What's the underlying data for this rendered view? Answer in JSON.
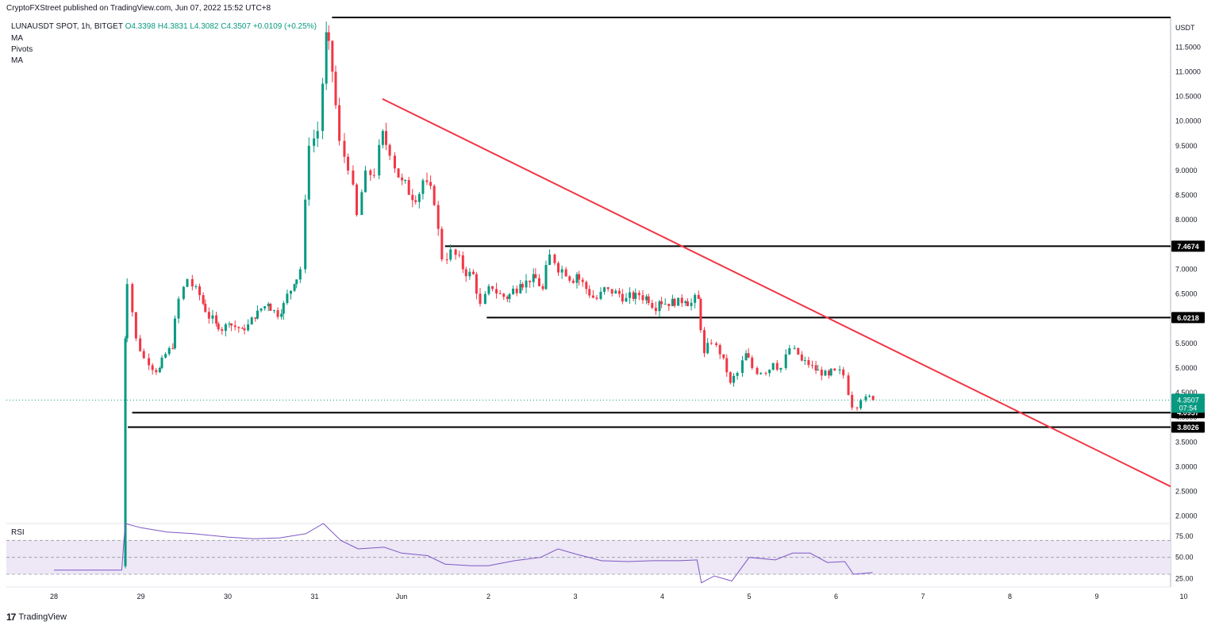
{
  "header": {
    "publisher": "CryptoFXStreet published on TradingView.com, Jun 07, 2022 15:52 UTC+8",
    "symbol": "LUNAUSDT SPOT, 1h, BITGET",
    "open": "O4.3398",
    "high": "H4.3831",
    "low": "L4.3082",
    "close": "C4.3507",
    "change": "+0.0109 (+0.25%)",
    "indicators": [
      "MA",
      "Pivots",
      "MA"
    ]
  },
  "branding": {
    "logo_text": "TradingView",
    "logo_mark": "17"
  },
  "colors": {
    "up": "#089981",
    "down": "#f23645",
    "trendline": "#f23645",
    "rsi": "#7e57c2",
    "rsi_band": "#ede7f6",
    "level": "#000000"
  },
  "chart_data": {
    "type": "candlestick",
    "symbol": "LUNAUSDT SPOT",
    "interval": "1h",
    "exchange": "BITGET",
    "y_unit": "USDT",
    "y_ticks": [
      "11.5000",
      "11.0000",
      "10.5000",
      "10.0000",
      "9.5000",
      "9.0000",
      "8.5000",
      "8.0000",
      "7.5000",
      "7.0000",
      "6.5000",
      "6.0000",
      "5.5000",
      "5.0000",
      "4.5000",
      "4.0000",
      "3.5000",
      "3.0000",
      "2.5000",
      "2.0000"
    ],
    "ylim": [
      1.85,
      12.1
    ],
    "x_ticks": [
      {
        "label": "28",
        "t": 28.0
      },
      {
        "label": "29",
        "t": 29.0
      },
      {
        "label": "30",
        "t": 30.0
      },
      {
        "label": "31",
        "t": 31.0
      },
      {
        "label": "Jun",
        "t": 32.0
      },
      {
        "label": "2",
        "t": 33.0
      },
      {
        "label": "3",
        "t": 34.0
      },
      {
        "label": "4",
        "t": 35.0
      },
      {
        "label": "5",
        "t": 36.0
      },
      {
        "label": "6",
        "t": 37.0
      },
      {
        "label": "7",
        "t": 38.0
      },
      {
        "label": "8",
        "t": 39.0
      },
      {
        "label": "9",
        "t": 40.0
      },
      {
        "label": "10",
        "t": 41.0
      }
    ],
    "price_path": [
      [
        28.78,
        1.0,
        1.0
      ],
      [
        28.8,
        1.0,
        5.6
      ],
      [
        28.86,
        5.6,
        6.7
      ],
      [
        28.95,
        6.6,
        5.6
      ],
      [
        29.05,
        5.5,
        5.2
      ],
      [
        29.2,
        5.1,
        5.0
      ],
      [
        29.35,
        5.1,
        5.4
      ],
      [
        29.45,
        5.5,
        6.4
      ],
      [
        29.55,
        6.4,
        6.8
      ],
      [
        29.7,
        6.5,
        6.3
      ],
      [
        29.85,
        6.2,
        5.9
      ],
      [
        30.0,
        6.0,
        5.9
      ],
      [
        30.15,
        5.9,
        5.8
      ],
      [
        30.3,
        5.9,
        6.0
      ],
      [
        30.45,
        5.9,
        6.3
      ],
      [
        30.6,
        6.2,
        6.1
      ],
      [
        30.75,
        6.3,
        6.7
      ],
      [
        30.85,
        6.6,
        7.0
      ],
      [
        30.95,
        7.2,
        9.5
      ],
      [
        31.05,
        9.2,
        9.8
      ],
      [
        31.12,
        9.9,
        11.8
      ],
      [
        31.2,
        11.3,
        11.0
      ],
      [
        31.3,
        10.7,
        9.6
      ],
      [
        31.4,
        9.5,
        9.0
      ],
      [
        31.5,
        9.0,
        8.1
      ],
      [
        31.6,
        8.5,
        9.0
      ],
      [
        31.7,
        9.0,
        8.9
      ],
      [
        31.78,
        9.2,
        9.8
      ],
      [
        31.88,
        9.6,
        9.3
      ],
      [
        32.0,
        9.3,
        8.8
      ],
      [
        32.12,
        8.8,
        8.4
      ],
      [
        32.25,
        8.5,
        8.8
      ],
      [
        32.38,
        8.7,
        8.3
      ],
      [
        32.48,
        8.3,
        7.2
      ],
      [
        32.58,
        7.1,
        7.4
      ],
      [
        32.7,
        7.3,
        7.0
      ],
      [
        32.82,
        7.2,
        6.9
      ],
      [
        32.92,
        6.8,
        6.3
      ],
      [
        33.05,
        6.3,
        6.6
      ],
      [
        33.2,
        6.5,
        6.4
      ],
      [
        33.35,
        6.4,
        6.7
      ],
      [
        33.5,
        6.6,
        6.9
      ],
      [
        33.62,
        6.8,
        6.6
      ],
      [
        33.72,
        6.7,
        7.3
      ],
      [
        33.85,
        7.1,
        7.0
      ],
      [
        34.0,
        7.0,
        6.9
      ],
      [
        34.12,
        6.9,
        6.6
      ],
      [
        34.25,
        6.6,
        6.4
      ],
      [
        34.38,
        6.4,
        6.6
      ],
      [
        34.5,
        6.5,
        6.5
      ],
      [
        34.65,
        6.5,
        6.4
      ],
      [
        34.8,
        6.4,
        6.45
      ],
      [
        34.95,
        6.45,
        6.35
      ],
      [
        35.1,
        6.35,
        6.4
      ],
      [
        35.25,
        6.4,
        6.35
      ],
      [
        35.4,
        6.35,
        6.4
      ],
      [
        35.48,
        6.35,
        5.3
      ],
      [
        35.58,
        5.4,
        5.5
      ],
      [
        35.7,
        5.4,
        5.2
      ],
      [
        35.78,
        5.2,
        4.7
      ],
      [
        35.88,
        4.7,
        4.9
      ],
      [
        35.95,
        4.9,
        5.3
      ],
      [
        36.05,
        5.2,
        5.0
      ],
      [
        36.15,
        5.0,
        4.9
      ],
      [
        36.28,
        4.9,
        5.1
      ],
      [
        36.38,
        5.05,
        5.0
      ],
      [
        36.48,
        5.0,
        5.4
      ],
      [
        36.6,
        5.35,
        5.15
      ],
      [
        36.75,
        5.15,
        4.95
      ],
      [
        36.9,
        4.95,
        4.85
      ],
      [
        37.0,
        4.9,
        4.95
      ],
      [
        37.1,
        4.95,
        4.85
      ],
      [
        37.2,
        4.85,
        4.2
      ],
      [
        37.3,
        4.25,
        4.35
      ],
      [
        37.42,
        4.32,
        4.35
      ]
    ],
    "annotations": {
      "price_labels": [
        "7.4674",
        "6.0218",
        "4.0957",
        "3.8026"
      ],
      "current_price": "4.3507",
      "countdown": "07:54",
      "levels": [
        {
          "y": 7.4674,
          "from_t": 32.5,
          "to_t": 41.1
        },
        {
          "y": 6.0218,
          "from_t": 32.98,
          "to_t": 41.1
        },
        {
          "y": 4.0957,
          "from_t": 28.9,
          "to_t": 41.1
        },
        {
          "y": 3.8026,
          "from_t": 28.85,
          "to_t": 41.1
        },
        {
          "y": 12.1,
          "from_t": 31.2,
          "to_t": 41.1
        }
      ],
      "trendline": {
        "t1": 31.78,
        "y1": 10.45,
        "t2": 41.2,
        "y2": 2.6
      }
    }
  },
  "rsi_data": {
    "label": "RSI",
    "ticks": [
      "75.00",
      "50.00",
      "25.00"
    ],
    "ylim": [
      15,
      90
    ],
    "levels": [
      70,
      50,
      30
    ],
    "values": [
      [
        28.0,
        35
      ],
      [
        28.7,
        35
      ],
      [
        28.78,
        35
      ],
      [
        28.82,
        90
      ],
      [
        29.0,
        85
      ],
      [
        29.3,
        80
      ],
      [
        29.6,
        78
      ],
      [
        30.0,
        74
      ],
      [
        30.3,
        72
      ],
      [
        30.6,
        73
      ],
      [
        30.9,
        78
      ],
      [
        31.1,
        90
      ],
      [
        31.3,
        70
      ],
      [
        31.5,
        60
      ],
      [
        31.8,
        62
      ],
      [
        32.0,
        55
      ],
      [
        32.3,
        52
      ],
      [
        32.5,
        42
      ],
      [
        32.8,
        40
      ],
      [
        33.0,
        40
      ],
      [
        33.3,
        46
      ],
      [
        33.6,
        50
      ],
      [
        33.8,
        60
      ],
      [
        34.0,
        54
      ],
      [
        34.3,
        46
      ],
      [
        34.6,
        45
      ],
      [
        34.9,
        46
      ],
      [
        35.2,
        46
      ],
      [
        35.4,
        47
      ],
      [
        35.45,
        20
      ],
      [
        35.6,
        28
      ],
      [
        35.8,
        22
      ],
      [
        36.0,
        50
      ],
      [
        36.3,
        47
      ],
      [
        36.5,
        55
      ],
      [
        36.7,
        55
      ],
      [
        36.9,
        44
      ],
      [
        37.1,
        45
      ],
      [
        37.2,
        30
      ],
      [
        37.42,
        32
      ]
    ]
  }
}
